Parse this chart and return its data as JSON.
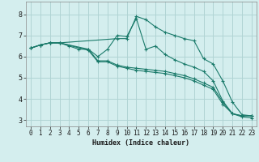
{
  "xlabel": "Humidex (Indice chaleur)",
  "bg_color": "#d4eeee",
  "grid_color": "#b0d4d4",
  "line_color": "#1a7a6a",
  "xlim": [
    -0.5,
    23.5
  ],
  "ylim": [
    2.7,
    8.6
  ],
  "xticks": [
    0,
    1,
    2,
    3,
    4,
    5,
    6,
    7,
    8,
    9,
    10,
    11,
    12,
    13,
    14,
    15,
    16,
    17,
    18,
    19,
    20,
    21,
    22,
    23
  ],
  "yticks": [
    3,
    4,
    5,
    6,
    7,
    8
  ],
  "lines": [
    {
      "x": [
        0,
        1,
        2,
        3,
        4,
        5,
        6,
        7,
        8,
        9,
        10,
        11,
        12,
        13,
        14,
        15,
        16,
        17,
        18,
        19,
        20,
        21,
        22,
        23
      ],
      "y": [
        6.4,
        6.55,
        6.65,
        6.65,
        6.5,
        6.35,
        6.35,
        6.0,
        6.35,
        7.0,
        6.95,
        7.8,
        6.35,
        6.5,
        6.1,
        5.85,
        5.65,
        5.5,
        5.3,
        4.85,
        3.9,
        3.3,
        3.2,
        3.2
      ]
    },
    {
      "x": [
        0,
        1,
        2,
        3,
        6,
        7,
        8,
        9,
        10,
        11,
        12,
        13,
        14,
        15,
        16,
        17,
        18,
        19,
        20,
        21,
        22,
        23
      ],
      "y": [
        6.4,
        6.55,
        6.65,
        6.65,
        6.35,
        5.8,
        5.8,
        5.6,
        5.5,
        5.45,
        5.4,
        5.35,
        5.3,
        5.2,
        5.1,
        4.95,
        4.75,
        4.55,
        3.85,
        3.3,
        3.2,
        3.2
      ]
    },
    {
      "x": [
        0,
        1,
        2,
        3,
        6,
        7,
        8,
        9,
        10,
        11,
        12,
        13,
        14,
        15,
        16,
        17,
        18,
        19,
        20,
        21,
        22,
        23
      ],
      "y": [
        6.4,
        6.55,
        6.65,
        6.65,
        6.3,
        5.75,
        5.75,
        5.55,
        5.45,
        5.35,
        5.3,
        5.25,
        5.2,
        5.1,
        5.0,
        4.85,
        4.65,
        4.45,
        3.75,
        3.3,
        3.15,
        3.1
      ]
    },
    {
      "x": [
        0,
        1,
        2,
        3,
        9,
        10,
        11,
        12,
        13,
        14,
        15,
        16,
        17,
        18,
        19,
        20,
        21,
        22,
        23
      ],
      "y": [
        6.4,
        6.55,
        6.65,
        6.65,
        6.85,
        6.85,
        7.9,
        7.75,
        7.4,
        7.15,
        7.0,
        6.85,
        6.75,
        5.9,
        5.65,
        4.85,
        3.85,
        3.25,
        3.2
      ]
    }
  ]
}
